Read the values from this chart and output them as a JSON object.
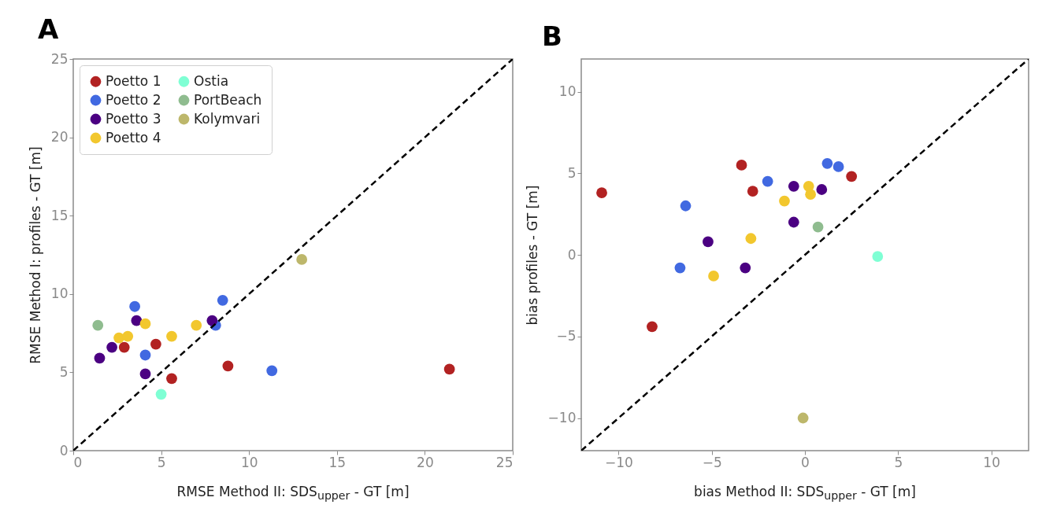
{
  "chart_data": [
    {
      "type": "scatter",
      "title": "A",
      "xlabel": "RMSE Method II: SDS$_{upper}$ - GT [m]",
      "ylabel": "RMSE Method I: profiles - GT [m]",
      "xlim": [
        0,
        25
      ],
      "ylim": [
        0,
        25
      ],
      "xticks": [
        0,
        5,
        10,
        15,
        20,
        25
      ],
      "yticks": [
        0,
        5,
        10,
        15,
        20,
        25
      ],
      "grid": false,
      "legend": "top left",
      "marker": "circle",
      "series": [
        {
          "name": "Poetto 1",
          "color": "#b22222",
          "x": [
            2.9,
            4.7,
            5.6,
            8.8,
            21.4
          ],
          "values": [
            6.6,
            6.8,
            4.6,
            5.4,
            5.2
          ]
        },
        {
          "name": "Poetto 2",
          "color": "#4169e1",
          "x": [
            3.5,
            4.1,
            8.5,
            8.1,
            11.3
          ],
          "values": [
            9.2,
            6.1,
            9.6,
            8.0,
            5.1
          ]
        },
        {
          "name": "Poetto 3",
          "color": "#4b0082",
          "x": [
            1.5,
            2.2,
            3.6,
            4.1,
            7.9
          ],
          "values": [
            5.9,
            6.6,
            8.3,
            4.9,
            8.3
          ]
        },
        {
          "name": "Poetto 4",
          "color": "#f2c72e",
          "x": [
            2.6,
            3.1,
            4.1,
            5.6,
            7.0
          ],
          "values": [
            7.2,
            7.3,
            8.1,
            7.3,
            8.0
          ]
        },
        {
          "name": "Ostia",
          "color": "#7fffd4",
          "x": [
            5.0
          ],
          "values": [
            3.6
          ]
        },
        {
          "name": "PortBeach",
          "color": "#8fbc8f",
          "x": [
            1.4
          ],
          "values": [
            8.0
          ]
        },
        {
          "name": "Kolymvari",
          "color": "#bdb76b",
          "x": [
            13.0
          ],
          "values": [
            12.2
          ]
        },
        {
          "type": "line",
          "color": "#000000",
          "line_style": "dashed",
          "marker": "none",
          "x": [
            0,
            25
          ],
          "values": [
            0,
            25
          ]
        }
      ]
    },
    {
      "type": "scatter",
      "title": "B",
      "xlabel": "bias Method II: SDS$_{upper}$ - GT [m]",
      "ylabel": "bias profiles - GT [m]",
      "xlim": [
        -12,
        12
      ],
      "ylim": [
        -12,
        12
      ],
      "xticks": [
        {
          "value": -10,
          "label": "−10"
        },
        {
          "value": -5,
          "label": "−5"
        },
        0,
        5,
        10
      ],
      "yticks": [
        {
          "value": -10,
          "label": "−10"
        },
        {
          "value": -5,
          "label": "−5"
        },
        0,
        5,
        10
      ],
      "grid": false,
      "marker": "circle",
      "series": [
        {
          "color": "#b22222",
          "x": [
            -10.9,
            -8.2,
            -3.4,
            -2.8,
            2.5
          ],
          "values": [
            3.8,
            -4.4,
            5.5,
            3.9,
            4.8
          ]
        },
        {
          "color": "#4169e1",
          "x": [
            -6.4,
            -6.7,
            -2.0,
            1.2,
            1.8
          ],
          "values": [
            3.0,
            -0.8,
            4.5,
            5.6,
            5.4
          ]
        },
        {
          "color": "#4b0082",
          "x": [
            -5.2,
            -3.2,
            -0.6,
            -0.6,
            0.9
          ],
          "values": [
            0.8,
            -0.8,
            4.2,
            2.0,
            4.0
          ]
        },
        {
          "color": "#f2c72e",
          "x": [
            -4.9,
            -2.9,
            -1.1,
            0.2,
            0.3
          ],
          "values": [
            -1.3,
            1.0,
            3.3,
            4.2,
            3.7
          ]
        },
        {
          "color": "#7fffd4",
          "x": [
            3.9
          ],
          "values": [
            -0.1
          ]
        },
        {
          "color": "#8fbc8f",
          "x": [
            0.7
          ],
          "values": [
            1.7
          ]
        },
        {
          "color": "#bdb76b",
          "x": [
            -0.1
          ],
          "values": [
            -10.0
          ]
        },
        {
          "type": "line",
          "color": "#000000",
          "line_style": "dashed",
          "marker": "none",
          "x": [
            -12,
            12
          ],
          "values": [
            -12,
            12
          ]
        }
      ]
    }
  ]
}
